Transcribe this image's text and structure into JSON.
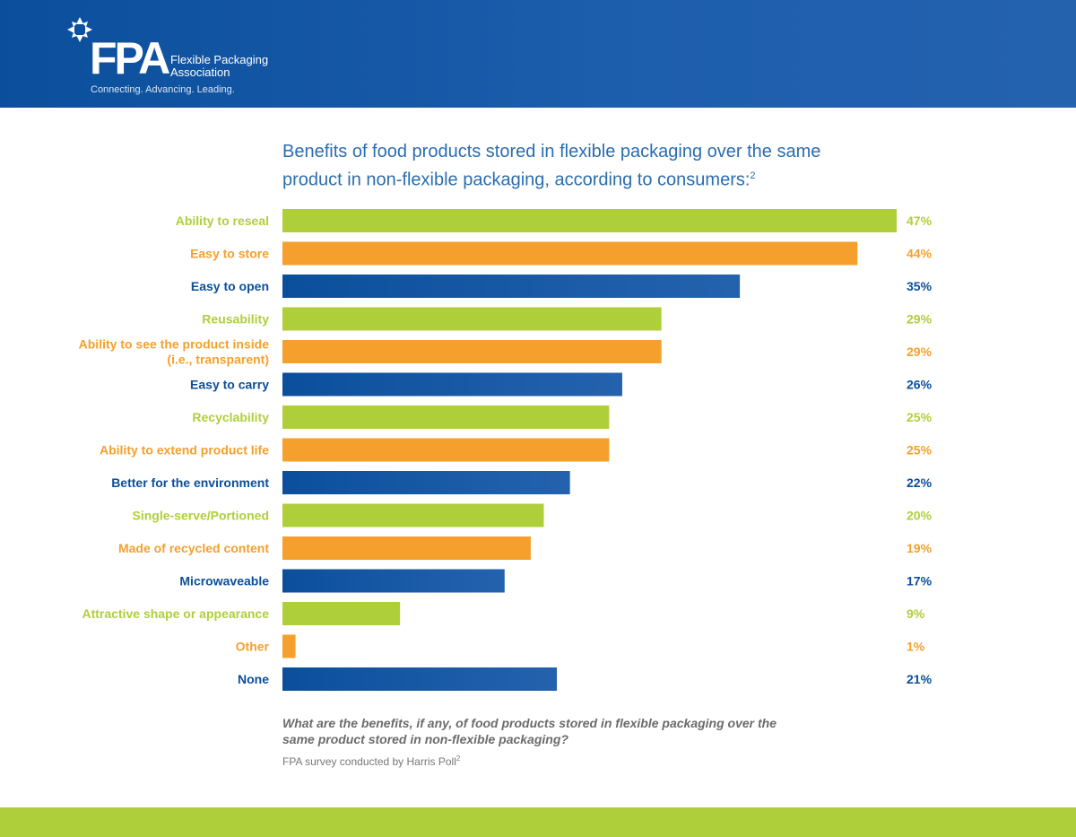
{
  "header": {
    "logo_text": "FPA",
    "org_name_line1": "Flexible Packaging",
    "org_name_line2": "Association",
    "tagline": "Connecting. Advancing. Leading."
  },
  "colors": {
    "green": "#afcf3a",
    "orange": "#f5a02c",
    "blue": "#0b4f9c",
    "blue_light": "#2462ae",
    "title_blue": "#2a6db0"
  },
  "chart_data": {
    "type": "bar",
    "orientation": "horizontal",
    "title": "Benefits of food products stored in flexible packaging over the same product in non-flexible packaging, according to consumers:",
    "title_footnote": "2",
    "xlabel": "",
    "ylabel": "",
    "xlim": [
      0,
      47
    ],
    "unit": "%",
    "grid": false,
    "legend": "none",
    "categories": [
      "Ability to reseal",
      "Easy to store",
      "Easy to open",
      "Reusability",
      "Ability to see the product inside (i.e., transparent)",
      "Easy to carry",
      "Recyclability",
      "Ability to extend product life",
      "Better for the environment",
      "Single-serve/Portioned",
      "Made of recycled content",
      "Microwaveable",
      "Attractive shape or appearance",
      "Other",
      "None"
    ],
    "label_lines": [
      [
        "Ability to reseal"
      ],
      [
        "Easy to store"
      ],
      [
        "Easy to open"
      ],
      [
        "Reusability"
      ],
      [
        "Ability to see the product inside",
        "(i.e., transparent)"
      ],
      [
        "Easy to carry"
      ],
      [
        "Recyclability"
      ],
      [
        "Ability to extend product life"
      ],
      [
        "Better for the environment"
      ],
      [
        "Single-serve/Portioned"
      ],
      [
        "Made of recycled content"
      ],
      [
        "Microwaveable"
      ],
      [
        "Attractive shape or appearance"
      ],
      [
        "Other"
      ],
      [
        "None"
      ]
    ],
    "values": [
      47,
      44,
      35,
      29,
      29,
      26,
      25,
      25,
      22,
      20,
      19,
      17,
      9,
      1,
      21
    ],
    "value_labels": [
      "47%",
      "44%",
      "35%",
      "29%",
      "29%",
      "26%",
      "25%",
      "25%",
      "22%",
      "20%",
      "19%",
      "17%",
      "9%",
      "1%",
      "21%"
    ],
    "bar_colors": [
      "green",
      "orange",
      "blue",
      "green",
      "orange",
      "blue",
      "green",
      "orange",
      "blue",
      "green",
      "orange",
      "blue",
      "green",
      "orange",
      "blue"
    ]
  },
  "notes": {
    "question": "What are the benefits, if any, of food products stored in flexible packaging over the same product stored in non-flexible packaging?",
    "source": "FPA survey conducted by Harris Poll",
    "source_footnote": "2"
  }
}
